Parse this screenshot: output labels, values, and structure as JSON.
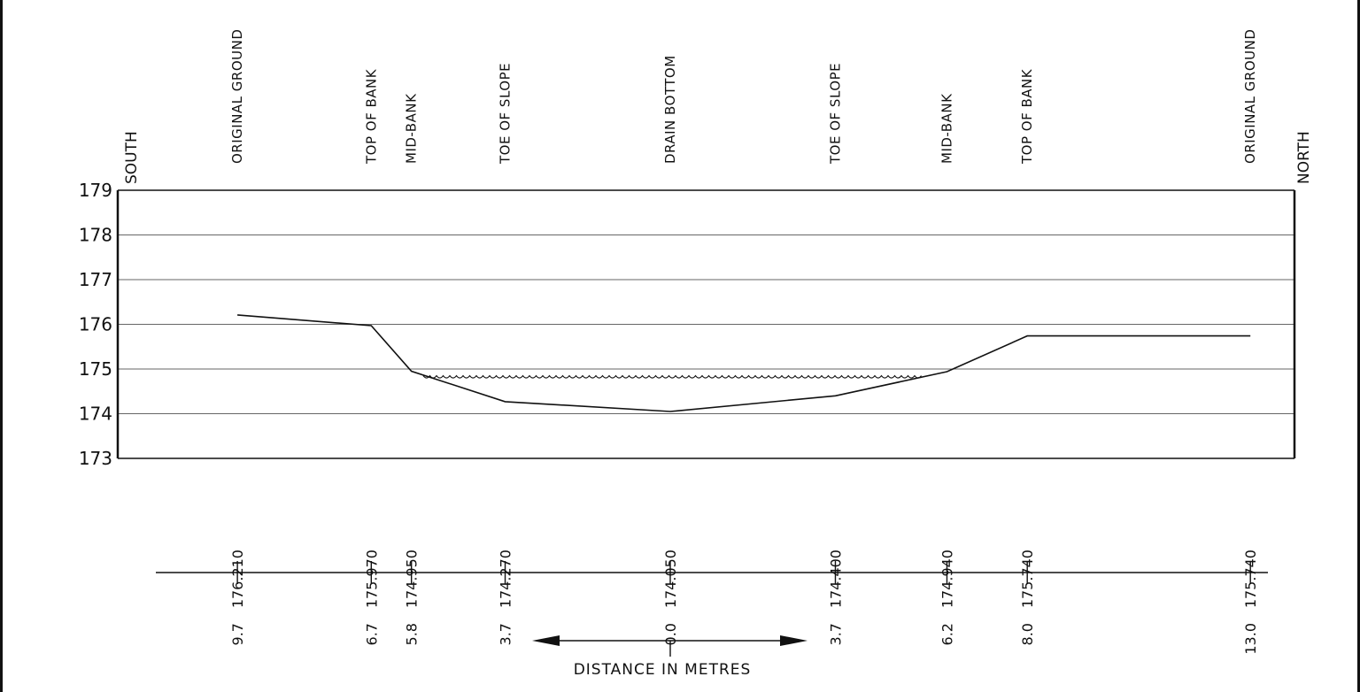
{
  "drawing": {
    "direction_left": "SOUTH",
    "direction_right": "NORTH",
    "distance_caption": "DISTANCE IN METRES",
    "colors": {
      "ink": "#111111",
      "grid": "#555555",
      "background": "#ffffff"
    }
  },
  "chart_data": {
    "type": "line",
    "title": "",
    "xlabel": "DISTANCE IN METRES",
    "ylabel": "",
    "ylim": [
      173,
      179
    ],
    "y_ticks": [
      "179",
      "178",
      "177",
      "176",
      "175",
      "174",
      "173"
    ],
    "grid": true,
    "stations": [
      {
        "label": "ORIGINAL GROUND",
        "distance": "9.7",
        "offset": -9.7,
        "elevation": "176.210",
        "y": 176.21
      },
      {
        "label": "TOP OF BANK",
        "distance": "6.7",
        "offset": -6.7,
        "elevation": "175.970",
        "y": 175.97
      },
      {
        "label": "MID-BANK",
        "distance": "5.8",
        "offset": -5.8,
        "elevation": "174.950",
        "y": 174.95
      },
      {
        "label": "TOE OF SLOPE",
        "distance": "3.7",
        "offset": -3.7,
        "elevation": "174.270",
        "y": 174.27
      },
      {
        "label": "DRAIN BOTTOM",
        "distance": "0.0",
        "offset": 0.0,
        "elevation": "174.050",
        "y": 174.05
      },
      {
        "label": "TOE OF SLOPE",
        "distance": "3.7",
        "offset": 3.7,
        "elevation": "174.400",
        "y": 174.4
      },
      {
        "label": "MID-BANK",
        "distance": "6.2",
        "offset": 6.2,
        "elevation": "174.940",
        "y": 174.94
      },
      {
        "label": "TOP OF BANK",
        "distance": "8.0",
        "offset": 8.0,
        "elevation": "175.740",
        "y": 175.74
      },
      {
        "label": "ORIGINAL GROUND",
        "distance": "13.0",
        "offset": 13.0,
        "elevation": "175.740",
        "y": 175.74
      }
    ],
    "water_level": 174.85
  }
}
